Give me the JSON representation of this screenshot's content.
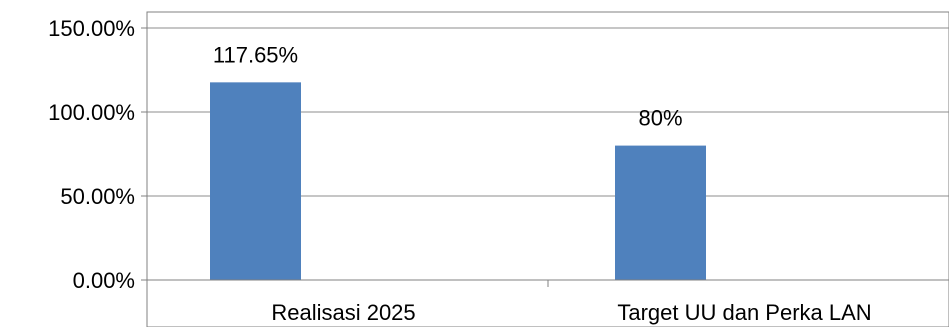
{
  "chart_data": {
    "type": "bar",
    "categories": [
      "Realisasi 2025",
      "Target UU dan Perka LAN"
    ],
    "series": [
      {
        "values": [
          117.65,
          80
        ],
        "data_labels": [
          "117.65%",
          "80%"
        ],
        "color": "#4F81BD"
      }
    ],
    "ylim": [
      0,
      150
    ],
    "y_ticks": [
      0,
      50,
      100,
      150
    ],
    "y_tick_labels": [
      "0.00%",
      "50.00%",
      "100.00%",
      "150.00%"
    ],
    "grid": true,
    "legend": "none",
    "title": "",
    "xlabel": "",
    "ylabel": ""
  }
}
